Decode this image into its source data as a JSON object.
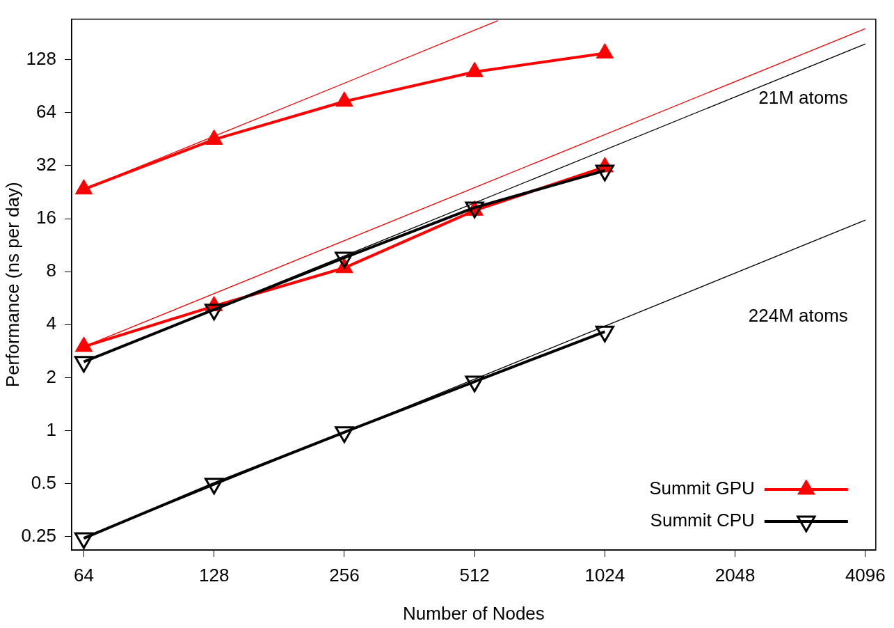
{
  "chart_data": {
    "type": "line",
    "xlabel": "Number of Nodes",
    "ylabel": "Performance (ns per day)",
    "log": "xy",
    "xlim": [
      60,
      4330
    ],
    "ylim": [
      0.21,
      217
    ],
    "xticks": [
      64,
      128,
      256,
      512,
      1024,
      2048,
      4096
    ],
    "yticks": [
      0.25,
      0.5,
      1,
      2,
      4,
      8,
      16,
      32,
      64,
      128
    ],
    "grid": false,
    "legend": "bottom right",
    "annotations": [
      "21M atoms",
      "224M atoms"
    ],
    "series": [
      {
        "name": "Summit GPU",
        "color": "#ff0000",
        "marker": "triangle",
        "x": [
          64,
          128,
          256,
          512,
          1024
        ],
        "values": [
          23.5,
          45,
          74,
          109,
          139
        ]
      },
      {
        "color": "#ff0000",
        "marker": "triangle",
        "x": [
          64,
          128,
          256,
          512,
          1024
        ],
        "values": [
          3.0,
          5.1,
          8.4,
          17.8,
          31.4
        ]
      },
      {
        "name": "Summit CPU",
        "color": "#000000",
        "marker": "triangle_down",
        "x": [
          64,
          128,
          256,
          512,
          1024
        ],
        "values": [
          2.46,
          4.87,
          9.6,
          18.5,
          30
        ]
      },
      {
        "color": "#000000",
        "marker": "triangle_down",
        "x": [
          64,
          128,
          256,
          512,
          1024
        ],
        "values": [
          0.245,
          0.5,
          0.98,
          1.9,
          3.65
        ]
      },
      {
        "color": "#ff0000",
        "marker": "none",
        "x": [
          64,
          580
        ],
        "values": [
          23.5,
          213
        ]
      },
      {
        "color": "#ff0000",
        "marker": "none",
        "x": [
          64,
          4096
        ],
        "values": [
          3.0,
          192
        ]
      },
      {
        "color": "#000000",
        "marker": "none",
        "x": [
          64,
          4096
        ],
        "values": [
          2.46,
          157
        ]
      },
      {
        "color": "#000000",
        "marker": "none",
        "x": [
          64,
          4096
        ],
        "values": [
          0.245,
          15.7
        ]
      }
    ]
  }
}
